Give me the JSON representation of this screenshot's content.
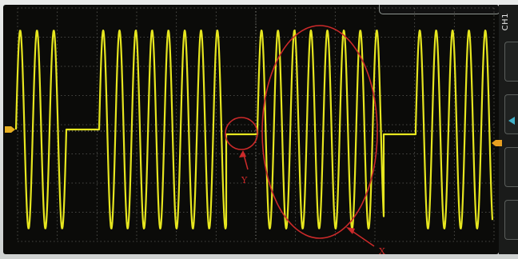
{
  "scope": {
    "channel_label": "CH1",
    "trace_color": "#e6e61f",
    "grid_color": "#5c5c58",
    "annotation_color": "#cc2a2a"
  },
  "annotations": {
    "circle_y_label": "Y",
    "ellipse_x_label": "X"
  },
  "icons": [
    "ground-marker-icon",
    "trigger-marker-icon",
    "cyan-arrow-icon"
  ]
}
